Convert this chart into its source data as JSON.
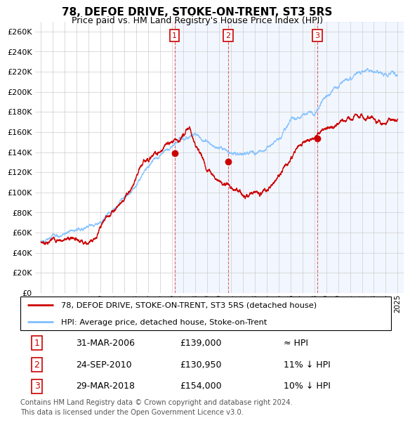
{
  "title": "78, DEFOE DRIVE, STOKE-ON-TRENT, ST3 5RS",
  "subtitle": "Price paid vs. HM Land Registry's House Price Index (HPI)",
  "ylim": [
    0,
    270000
  ],
  "ytick_vals": [
    0,
    20000,
    40000,
    60000,
    80000,
    100000,
    120000,
    140000,
    160000,
    180000,
    200000,
    220000,
    240000,
    260000
  ],
  "ytick_labels": [
    "£0",
    "£20K",
    "£40K",
    "£60K",
    "£80K",
    "£100K",
    "£120K",
    "£140K",
    "£160K",
    "£180K",
    "£200K",
    "£220K",
    "£240K",
    "£260K"
  ],
  "xmin": 1994.5,
  "xmax": 2025.5,
  "xticks": [
    1995,
    1996,
    1997,
    1998,
    1999,
    2000,
    2001,
    2002,
    2003,
    2004,
    2005,
    2006,
    2007,
    2008,
    2009,
    2010,
    2011,
    2012,
    2013,
    2014,
    2015,
    2016,
    2017,
    2018,
    2019,
    2020,
    2021,
    2022,
    2023,
    2024,
    2025
  ],
  "sale_years_float": [
    2006.25,
    2010.75,
    2018.25
  ],
  "sale_prices": [
    139000,
    130950,
    154000
  ],
  "sale_labels": [
    "1",
    "2",
    "3"
  ],
  "house_color": "#cc0000",
  "hpi_color": "#7fbfff",
  "hpi_fill_color": "#ddeeff",
  "legend_house_label": "78, DEFOE DRIVE, STOKE-ON-TRENT, ST3 5RS (detached house)",
  "legend_hpi_label": "HPI: Average price, detached house, Stoke-on-Trent",
  "table_rows": [
    {
      "num": "1",
      "date": "31-MAR-2006",
      "price": "£139,000",
      "rel": "≈ HPI"
    },
    {
      "num": "2",
      "date": "24-SEP-2010",
      "price": "£130,950",
      "rel": "11% ↓ HPI"
    },
    {
      "num": "3",
      "date": "29-MAR-2018",
      "price": "£154,000",
      "rel": "10% ↓ HPI"
    }
  ],
  "footer": "Contains HM Land Registry data © Crown copyright and database right 2024.\nThis data is licensed under the Open Government Licence v3.0.",
  "bg_color": "#ffffff",
  "grid_color": "#cccccc",
  "title_fontsize": 11,
  "subtitle_fontsize": 9
}
